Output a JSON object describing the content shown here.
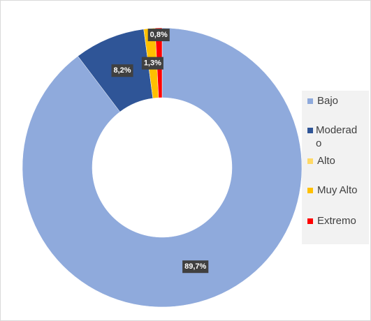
{
  "chart_data": {
    "type": "donut",
    "categories": [
      "Bajo",
      "Moderado",
      "Alto",
      "Muy Alto",
      "Extremo"
    ],
    "values": [
      89.7,
      8.2,
      0,
      1.3,
      0.8
    ],
    "value_labels": [
      "89,7%",
      "8,2%",
      null,
      "1,3%",
      "0,8%"
    ],
    "colors": [
      "#8faadc",
      "#2f5597",
      "#ffd966",
      "#ffc000",
      "#ff0000"
    ],
    "legend": "right"
  }
}
